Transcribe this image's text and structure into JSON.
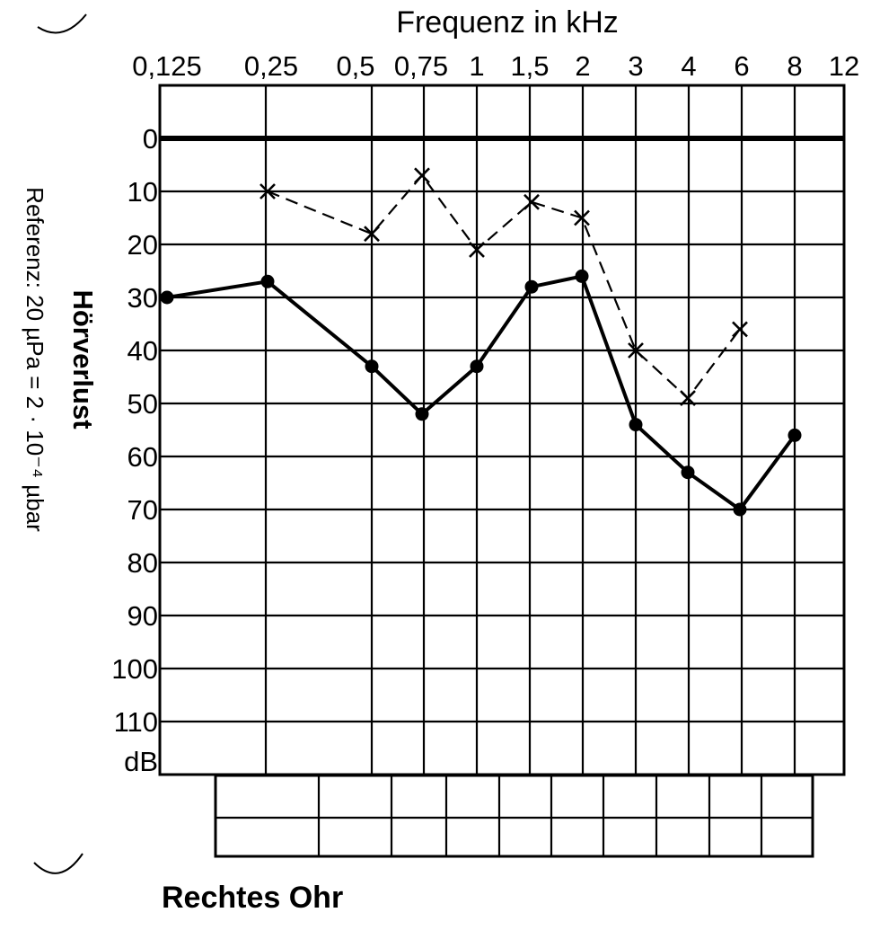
{
  "chart_data": {
    "type": "line",
    "title": "",
    "xlabel": "Frequenz in kHz",
    "ylabel": "Hörverlust",
    "ylabel_sub": "Referenz: 20 µPa = 2 · 10⁻⁴ µbar",
    "y_unit": "dB",
    "footer": "Rechtes Ohr",
    "x_ticks": [
      "0,125",
      "0,25",
      "0,5",
      "0,75",
      "1",
      "1,5",
      "2",
      "3",
      "4",
      "6",
      "8",
      "12"
    ],
    "y_ticks": [
      "0",
      "10",
      "20",
      "30",
      "40",
      "50",
      "60",
      "70",
      "80",
      "90",
      "100",
      "110"
    ],
    "ylim": [
      -10,
      120
    ],
    "y_inverted": true,
    "grid": true,
    "series": [
      {
        "marker": "dot",
        "line": "solid",
        "x": [
          "0,125",
          "0,25",
          "0,5",
          "0,75",
          "1",
          "1,5",
          "2",
          "3",
          "4",
          "6",
          "8"
        ],
        "values": [
          30,
          27,
          43,
          52,
          43,
          28,
          26,
          54,
          63,
          70,
          56
        ]
      },
      {
        "marker": "cross",
        "line": "dashed",
        "x": [
          "0,25",
          "0,5",
          "0,75",
          "1",
          "1,5",
          "2",
          "3",
          "4",
          "6"
        ],
        "values": [
          10,
          18,
          7,
          21,
          12,
          15,
          40,
          49,
          36
        ]
      }
    ]
  }
}
